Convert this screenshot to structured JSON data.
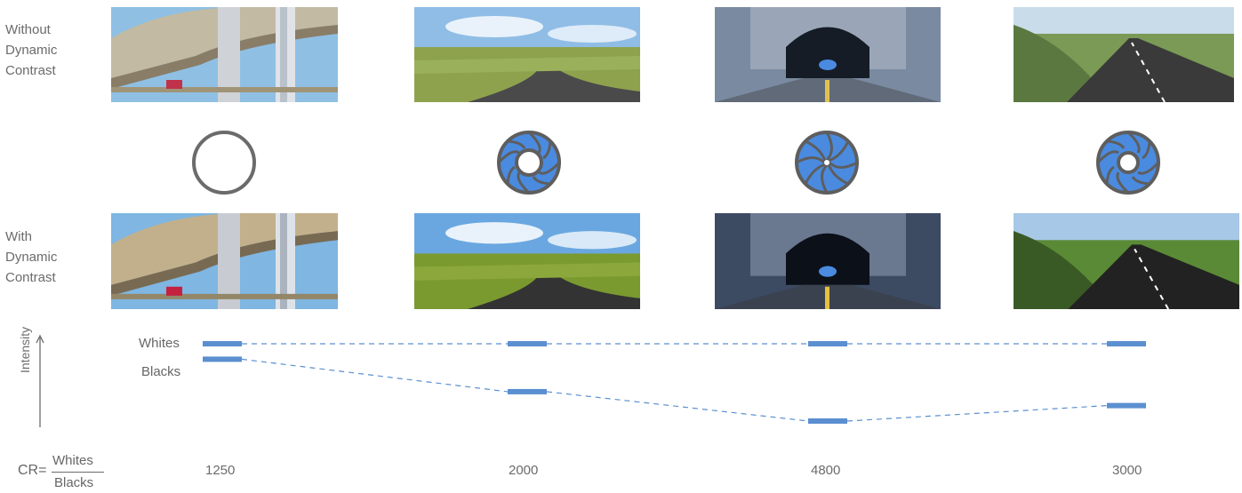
{
  "labels": {
    "without": [
      "Without",
      "Dynamic",
      "Contrast"
    ],
    "with": [
      "With",
      "Dynamic",
      "Contrast"
    ]
  },
  "scenes": [
    {
      "name": "overpass",
      "cr": "1250",
      "iris": "open"
    },
    {
      "name": "country-road",
      "cr": "2000",
      "iris": "medium"
    },
    {
      "name": "tunnel",
      "cr": "4800",
      "iris": "closed"
    },
    {
      "name": "motion-blur-road",
      "cr": "3000",
      "iris": "medium"
    }
  ],
  "chart": {
    "whites_label": "Whites",
    "blacks_label": "Blacks",
    "axis_label": "Intensity",
    "cr_prefix": "CR=",
    "cr_numerator": "Whites",
    "cr_denominator": "Blacks"
  },
  "chart_data": {
    "type": "line",
    "categories": [
      "1250",
      "2000",
      "4800",
      "3000"
    ],
    "ylabel": "Intensity",
    "series": [
      {
        "name": "Whites",
        "values": [
          1.0,
          1.0,
          1.0,
          1.0
        ]
      },
      {
        "name": "Blacks",
        "values": [
          0.8,
          0.38,
          0.0,
          0.2
        ]
      }
    ],
    "colors": {
      "bar": "#5b8fd0",
      "dash": "#5b8fd0",
      "iris": "#4a8be0",
      "ring": "#6b6b6b"
    }
  }
}
